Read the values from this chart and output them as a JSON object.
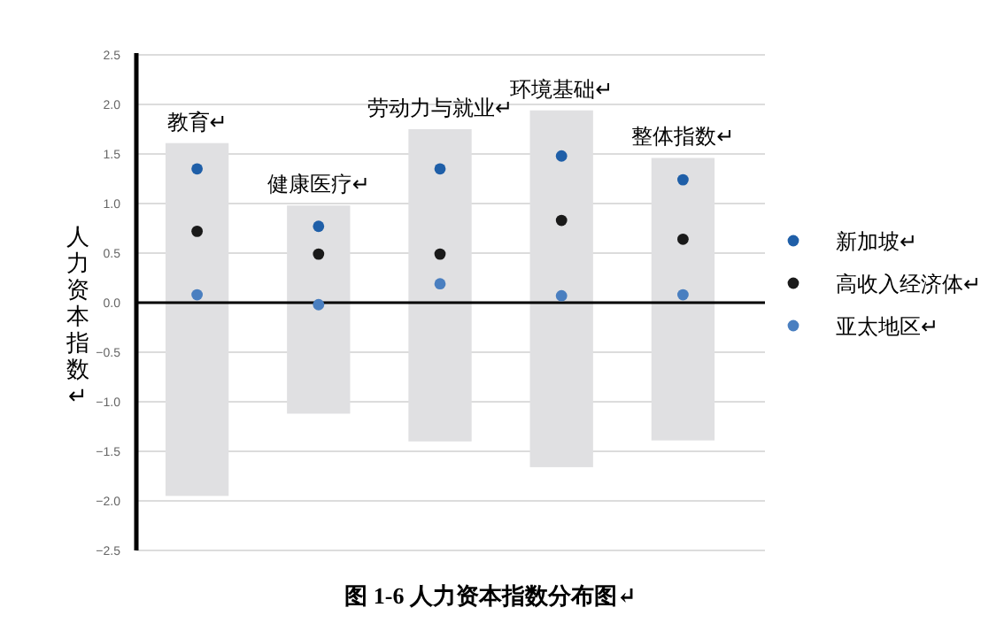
{
  "chart_data": {
    "type": "bar",
    "title": "图 1-6 人力资本指数分布图↵",
    "ylabel": "人力资本指数↵",
    "categories": [
      "教育↵",
      "健康医疗↵",
      "劳动力与就业↵",
      "环境基础↵",
      "整体指数↵"
    ],
    "ylim": [
      -2.5,
      2.5
    ],
    "yticks": [
      {
        "value": 2.5,
        "label": "2.5"
      },
      {
        "value": 2,
        "label": "2.0"
      },
      {
        "value": 1.5,
        "label": "1.5"
      },
      {
        "value": 1,
        "label": "1.0"
      },
      {
        "value": 0.5,
        "label": "0.5"
      },
      {
        "value": 0,
        "label": "0.0"
      },
      {
        "value": -0.5,
        "label": "−0.5"
      },
      {
        "value": -1,
        "label": "−1.0"
      },
      {
        "value": -1.5,
        "label": "−1.5"
      },
      {
        "value": -2,
        "label": "−2.0"
      },
      {
        "value": -2.5,
        "label": "−2.5"
      }
    ],
    "grid": "y",
    "legend": "right",
    "marker": "circle",
    "ref_lines": [
      {
        "axis": "y",
        "value": 0,
        "color": "#000000"
      }
    ],
    "series": [
      {
        "color": "#e0e0e2",
        "base": [
          -1.95,
          -1.12,
          -1.4,
          -1.66,
          -1.39
        ],
        "values": [
          3.56,
          2.1,
          3.15,
          3.6,
          2.85
        ]
      },
      {
        "type": "scatter",
        "name": "新加坡↵",
        "color": "#1f5fa8",
        "values": [
          1.35,
          0.77,
          1.35,
          1.48,
          1.24
        ]
      },
      {
        "type": "scatter",
        "name": "高收入经济体↵",
        "color": "#1a1a1a",
        "values": [
          0.72,
          0.49,
          0.49,
          0.83,
          0.64
        ]
      },
      {
        "type": "scatter",
        "name": "亚太地区↵",
        "color": "#4a7fc0",
        "values": [
          0.08,
          -0.02,
          0.19,
          0.07,
          0.08
        ]
      }
    ]
  }
}
